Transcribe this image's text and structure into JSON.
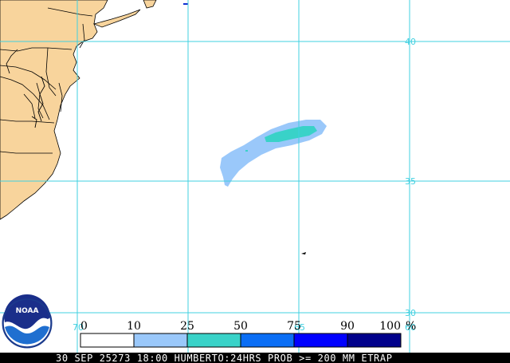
{
  "grid_labels": {
    "lat": [
      "40",
      "35",
      "30"
    ],
    "lon": [
      "70",
      "65",
      "60"
    ]
  },
  "legend": {
    "values": [
      "0",
      "10",
      "25",
      "50",
      "75",
      "90",
      "100"
    ],
    "unit": "%",
    "colors": [
      "#ffffff",
      "#9ac8fa",
      "#39d2c8",
      "#0a6ef5",
      "#0000ff",
      "#00008b"
    ]
  },
  "logo": {
    "text": "NOAA"
  },
  "footer": {
    "text": "30 SEP 25273 18:00 HUMBERTO:24HRS PROB >= 200 MM ETRAP"
  },
  "colors": {
    "land": "#f8d49c",
    "ocean": "#ffffff",
    "grid": "#40d0e0",
    "borders": "#000000",
    "footer_bg": "#000000"
  }
}
